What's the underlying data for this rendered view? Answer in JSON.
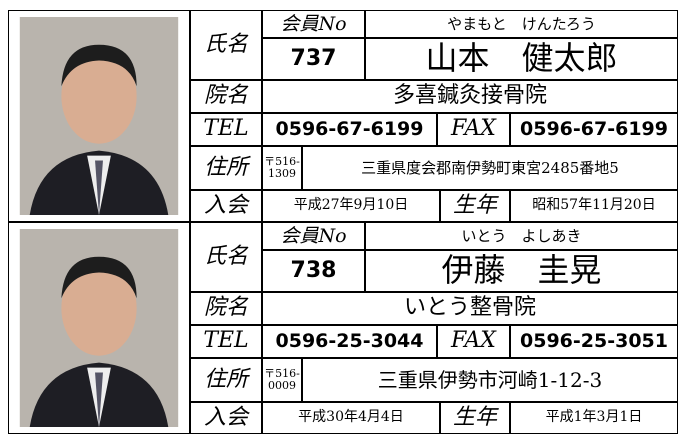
{
  "labels": {
    "name": "氏名",
    "member_no": "会員No",
    "clinic": "院名",
    "tel": "TEL",
    "fax": "FAX",
    "address": "住所",
    "joined": "入会",
    "born": "生年"
  },
  "members": [
    {
      "member_no": "737",
      "kana": "やまもと　けんたろう",
      "name": "山本　健太郎",
      "clinic": "多喜鍼灸接骨院",
      "tel": "0596-67-6199",
      "fax": "0596-67-6199",
      "postal": "〒516-\n1309",
      "address": "三重県度会郡南伊勢町東宮2485番地5",
      "joined": "平成27年9月10日",
      "born": "昭和57年11月20日"
    },
    {
      "member_no": "738",
      "kana": "いとう　よしあき",
      "name": "伊藤　圭晃",
      "clinic": "いとう整骨院",
      "tel": "0596-25-3044",
      "fax": "0596-25-3051",
      "postal": "〒516-\n0009",
      "address": "三重県伊勢市河崎1-12-3",
      "joined": "平成30年4月4日",
      "born": "平成1年3月1日"
    }
  ]
}
